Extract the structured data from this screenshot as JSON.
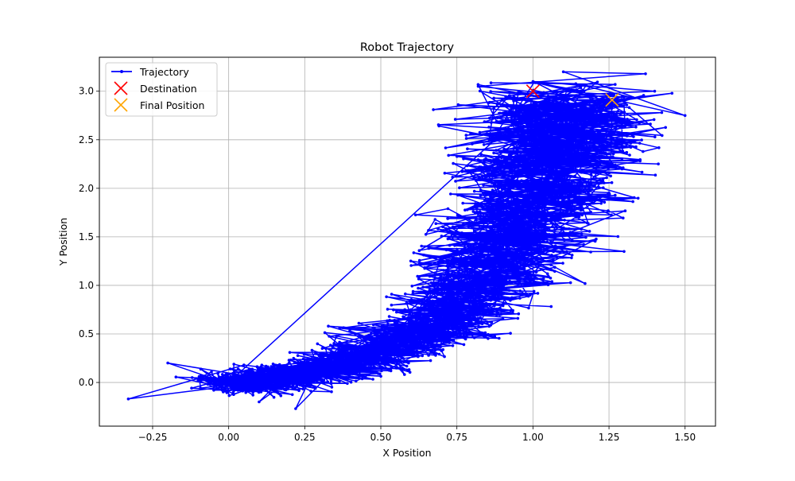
{
  "chart_data": {
    "type": "line",
    "title": "Robot Trajectory",
    "xlabel": "X Position",
    "ylabel": "Y Position",
    "xlim": [
      -0.425,
      1.6
    ],
    "ylim": [
      -0.45,
      3.35
    ],
    "x_ticks": [
      -0.25,
      0.0,
      0.25,
      0.5,
      0.75,
      1.0,
      1.25,
      1.5
    ],
    "x_tick_labels": [
      "−0.25",
      "0.00",
      "0.25",
      "0.50",
      "0.75",
      "1.00",
      "1.25",
      "1.50"
    ],
    "y_ticks": [
      0.0,
      0.5,
      1.0,
      1.5,
      2.0,
      2.5,
      3.0
    ],
    "y_tick_labels": [
      "0.0",
      "0.5",
      "1.0",
      "1.5",
      "2.0",
      "2.5",
      "3.0"
    ],
    "grid": true,
    "legend_position": "top-left",
    "series": [
      {
        "name": "Trajectory",
        "color": "#0000ff",
        "marker": "dot",
        "path_note_points": [
          [
            0.0,
            0.0
          ],
          [
            -0.12,
            0.05
          ],
          [
            0.08,
            -0.1
          ],
          [
            -0.2,
            0.2
          ],
          [
            0.15,
            0.02
          ],
          [
            -0.33,
            -0.17
          ],
          [
            0.05,
            0.18
          ],
          [
            0.2,
            0.12
          ],
          [
            0.1,
            -0.2
          ],
          [
            0.3,
            0.25
          ],
          [
            0.22,
            -0.27
          ],
          [
            0.4,
            0.3
          ],
          [
            0.55,
            0.4
          ],
          [
            0.48,
            0.55
          ],
          [
            0.7,
            0.6
          ],
          [
            0.62,
            0.72
          ],
          [
            0.8,
            0.9
          ],
          [
            0.72,
            1.1
          ],
          [
            0.95,
            1.1
          ],
          [
            0.9,
            1.3
          ],
          [
            1.05,
            1.5
          ],
          [
            0.85,
            1.45
          ],
          [
            1.15,
            1.8
          ],
          [
            0.95,
            2.0
          ],
          [
            1.2,
            2.3
          ],
          [
            0.88,
            2.6
          ],
          [
            1.3,
            2.7
          ],
          [
            1.05,
            2.95
          ],
          [
            1.4,
            3.0
          ],
          [
            1.0,
            3.1
          ],
          [
            1.5,
            2.75
          ],
          [
            1.1,
            3.2
          ],
          [
            1.37,
            3.18
          ],
          [
            0.82,
            3.05
          ],
          [
            1.26,
            2.91
          ]
        ]
      }
    ],
    "markers": [
      {
        "name": "Destination",
        "x": 1.0,
        "y": 3.0,
        "color": "#ff0000",
        "symbol": "x"
      },
      {
        "name": "Final Position",
        "x": 1.26,
        "y": 2.91,
        "color": "#ffa500",
        "symbol": "x"
      }
    ]
  }
}
